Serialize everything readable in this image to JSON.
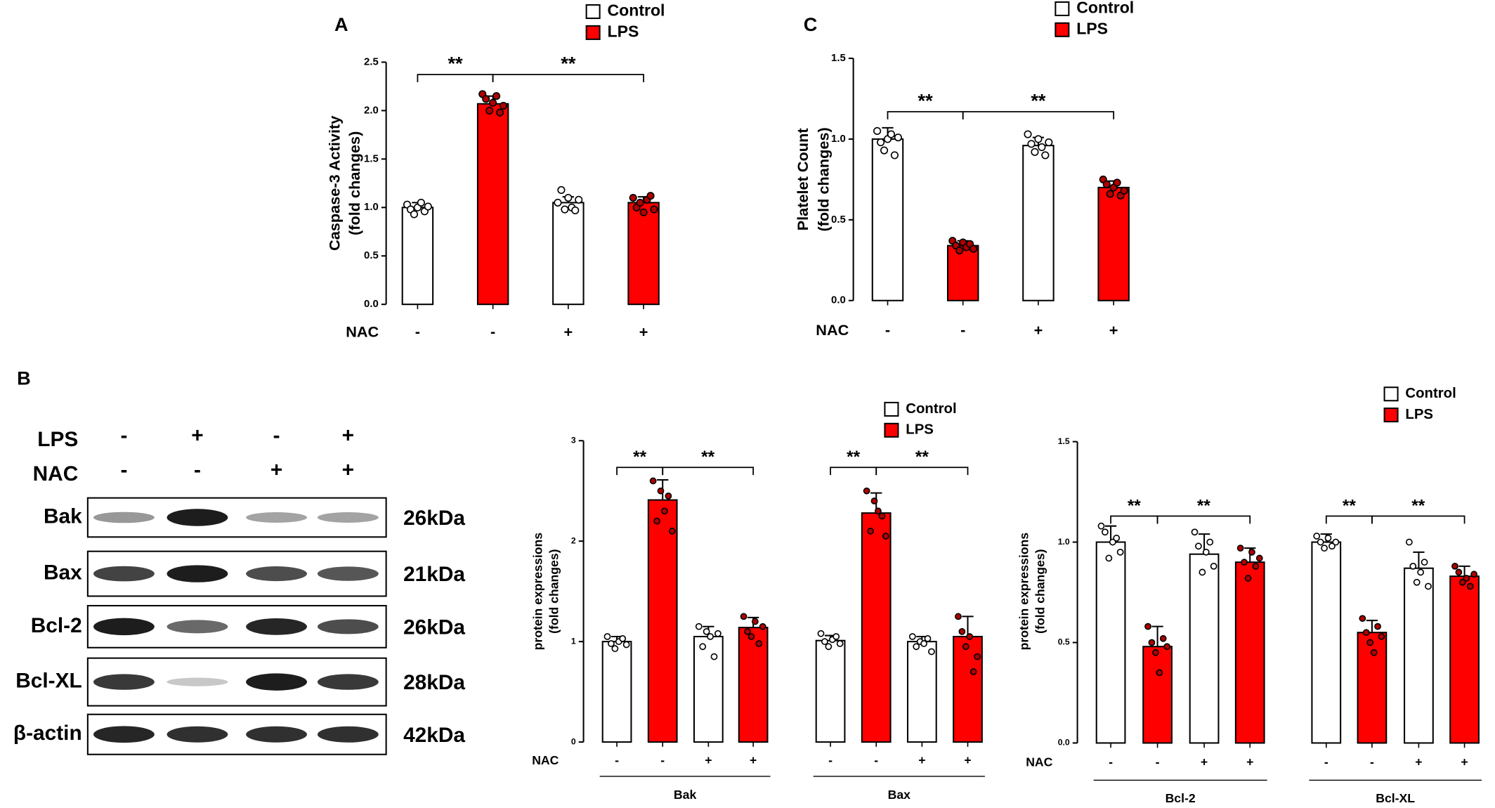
{
  "chart_data": [
    {
      "type": "bar",
      "panel": "A",
      "ylabel": [
        "Caspase-3 Activity",
        "(fold changes)"
      ],
      "x_label": "NAC",
      "categories": [
        "-",
        "-",
        "+",
        "+"
      ],
      "ylim": [
        0,
        2.5
      ],
      "yticks": [
        {
          "value": 0,
          "label": "0.0"
        },
        0.5,
        {
          "value": 1,
          "label": "1.0"
        },
        1.5,
        {
          "value": 2,
          "label": "2.0"
        },
        2.5
      ],
      "series": [
        {
          "name": "Control",
          "color": "#ffffff",
          "dot_color": "#ffffff",
          "values": [
            1.0,
            null,
            1.05,
            null
          ],
          "errors": [
            0.05,
            null,
            0.06,
            null
          ],
          "points": [
            [
              1.03,
              0.98,
              0.93,
              1.0,
              1.05,
              0.96,
              1.01
            ],
            null,
            [
              1.05,
              1.18,
              0.98,
              1.1,
              1.0,
              0.97,
              1.08
            ],
            null
          ]
        },
        {
          "name": "LPS",
          "color": "#ff0000",
          "dot_color": "#b00000",
          "values": [
            null,
            2.07,
            null,
            1.05
          ],
          "errors": [
            null,
            0.08,
            null,
            0.06
          ],
          "points": [
            null,
            [
              2.17,
              2.12,
              2.0,
              2.08,
              2.15,
              1.98,
              2.05
            ],
            null,
            [
              1.1,
              1.0,
              1.05,
              0.95,
              1.08,
              1.12,
              0.98
            ]
          ]
        }
      ],
      "annotations": [
        {
          "text": "**",
          "bars": [
            0,
            1
          ]
        },
        {
          "text": "**",
          "bars": [
            1,
            3
          ]
        }
      ]
    },
    {
      "type": "bar",
      "panel": "C",
      "ylabel": [
        "Platelet Count",
        "(fold changes)"
      ],
      "x_label": "NAC",
      "categories": [
        "-",
        "-",
        "+",
        "+"
      ],
      "ylim": [
        0,
        1.5
      ],
      "yticks": [
        {
          "value": 0,
          "label": "0.0"
        },
        0.5,
        {
          "value": 1,
          "label": "1.0"
        },
        1.5
      ],
      "series": [
        {
          "name": "Control",
          "color": "#ffffff",
          "dot_color": "#ffffff",
          "values": [
            1.0,
            null,
            0.96,
            null
          ],
          "errors": [
            0.07,
            null,
            0.05,
            null
          ],
          "points": [
            [
              1.05,
              0.98,
              0.93,
              1.0,
              1.03,
              0.9,
              1.01
            ],
            null,
            [
              1.03,
              0.97,
              0.92,
              1.0,
              0.95,
              0.9,
              0.98
            ],
            null
          ]
        },
        {
          "name": "LPS",
          "color": "#ff0000",
          "dot_color": "#b00000",
          "values": [
            null,
            0.34,
            null,
            0.7
          ],
          "errors": [
            null,
            0.03,
            null,
            0.04
          ],
          "points": [
            null,
            [
              0.37,
              0.34,
              0.31,
              0.36,
              0.33,
              0.35,
              0.32
            ],
            null,
            [
              0.75,
              0.72,
              0.66,
              0.7,
              0.73,
              0.65,
              0.68
            ]
          ]
        }
      ],
      "annotations": [
        {
          "text": "**",
          "bars": [
            0,
            1
          ]
        },
        {
          "text": "**",
          "bars": [
            1,
            3
          ]
        }
      ]
    },
    {
      "type": "bar",
      "ylabel": [
        "protein expressions",
        "(fold changes)"
      ],
      "x_label": "NAC",
      "categories": [
        "-",
        "-",
        "+",
        "+",
        "-",
        "-",
        "+",
        "+"
      ],
      "groups": [
        "Bak",
        "Bax"
      ],
      "ylim": [
        0,
        3
      ],
      "yticks": [
        0,
        1,
        2,
        3
      ],
      "series": [
        {
          "name": "Control",
          "color": "#ffffff",
          "dot_color": "#ffffff",
          "values": [
            1.0,
            null,
            1.05,
            null,
            1.01,
            null,
            1.0,
            null
          ],
          "errors": [
            0.05,
            null,
            0.1,
            null,
            0.05,
            null,
            0.05,
            null
          ],
          "points": [
            [
              1.05,
              0.98,
              0.93,
              1.0,
              1.03,
              0.97
            ],
            null,
            [
              1.15,
              0.95,
              1.1,
              1.05,
              0.85,
              1.08
            ],
            null,
            [
              1.08,
              1.0,
              0.95,
              1.02,
              1.05,
              0.98
            ],
            null,
            [
              1.05,
              0.95,
              1.0,
              0.98,
              1.03,
              0.9
            ],
            null
          ]
        },
        {
          "name": "LPS",
          "color": "#ff0000",
          "dot_color": "#b00000",
          "values": [
            null,
            2.41,
            null,
            1.14,
            null,
            2.28,
            null,
            1.05
          ],
          "errors": [
            null,
            0.2,
            null,
            0.1,
            null,
            0.2,
            null,
            0.2
          ],
          "points": [
            null,
            [
              2.6,
              2.2,
              2.5,
              2.3,
              2.45,
              2.1
            ],
            null,
            [
              1.25,
              1.1,
              1.05,
              1.2,
              0.98,
              1.15
            ],
            null,
            [
              2.5,
              2.1,
              2.4,
              2.3,
              2.25,
              2.05
            ],
            null,
            [
              1.25,
              1.1,
              0.95,
              1.05,
              0.7,
              0.85
            ]
          ]
        }
      ],
      "annotations": [
        {
          "text": "**",
          "bars": [
            0,
            1
          ]
        },
        {
          "text": "**",
          "bars": [
            1,
            3
          ]
        },
        {
          "text": "**",
          "bars": [
            4,
            5
          ]
        },
        {
          "text": "**",
          "bars": [
            5,
            7
          ]
        }
      ]
    },
    {
      "type": "bar",
      "ylabel": [
        "protein expressions",
        "(fold changes)"
      ],
      "x_label": "NAC",
      "categories": [
        "-",
        "-",
        "+",
        "+",
        "-",
        "-",
        "+",
        "+"
      ],
      "groups": [
        "Bcl-2",
        "Bcl-XL"
      ],
      "ylim": [
        0,
        1.5
      ],
      "yticks": [
        {
          "value": 0,
          "label": "0.0"
        },
        0.5,
        {
          "value": 1,
          "label": "1.0"
        },
        1.5
      ],
      "series": [
        {
          "name": "Control",
          "color": "#ffffff",
          "dot_color": "#ffffff",
          "values": [
            1.0,
            null,
            0.94,
            null,
            1.0,
            null,
            0.87,
            null
          ],
          "errors": [
            0.08,
            null,
            0.1,
            null,
            0.04,
            null,
            0.08,
            null
          ],
          "points": [
            [
              1.08,
              1.05,
              0.92,
              1.0,
              1.02,
              0.95
            ],
            null,
            [
              1.05,
              0.98,
              0.85,
              0.95,
              1.0,
              0.88
            ],
            null,
            [
              1.03,
              1.0,
              0.97,
              1.02,
              0.98,
              1.0
            ],
            null,
            [
              1.0,
              0.88,
              0.8,
              0.85,
              0.9,
              0.78
            ],
            null
          ]
        },
        {
          "name": "LPS",
          "color": "#ff0000",
          "dot_color": "#b00000",
          "values": [
            null,
            0.48,
            null,
            0.9,
            null,
            0.55,
            null,
            0.83
          ],
          "errors": [
            null,
            0.1,
            null,
            0.07,
            null,
            0.06,
            null,
            0.05
          ],
          "points": [
            null,
            [
              0.58,
              0.5,
              0.45,
              0.35,
              0.52,
              0.48
            ],
            null,
            [
              0.97,
              0.9,
              0.82,
              0.95,
              0.88,
              0.92
            ],
            null,
            [
              0.62,
              0.55,
              0.5,
              0.45,
              0.58,
              0.53
            ],
            null,
            [
              0.88,
              0.85,
              0.8,
              0.82,
              0.78,
              0.84
            ]
          ]
        }
      ],
      "annotations": [
        {
          "text": "**",
          "bars": [
            0,
            1
          ]
        },
        {
          "text": "**",
          "bars": [
            1,
            3
          ]
        },
        {
          "text": "**",
          "bars": [
            4,
            5
          ]
        },
        {
          "text": "**",
          "bars": [
            5,
            7
          ]
        }
      ]
    }
  ],
  "blot": {
    "panel": "B",
    "conditions": [
      {
        "label": "LPS",
        "signs": [
          "-",
          "+",
          "-",
          "+"
        ]
      },
      {
        "label": "NAC",
        "signs": [
          "-",
          "-",
          "+",
          "+"
        ]
      }
    ],
    "rows": [
      {
        "label": "Bak",
        "size": "26kDa"
      },
      {
        "label": "Bax",
        "size": "21kDa"
      },
      {
        "label": "Bcl-2",
        "size": "26kDa"
      },
      {
        "label": "Bcl-XL",
        "size": "28kDa"
      },
      {
        "label": "β-actin",
        "size": "42kDa"
      }
    ]
  }
}
